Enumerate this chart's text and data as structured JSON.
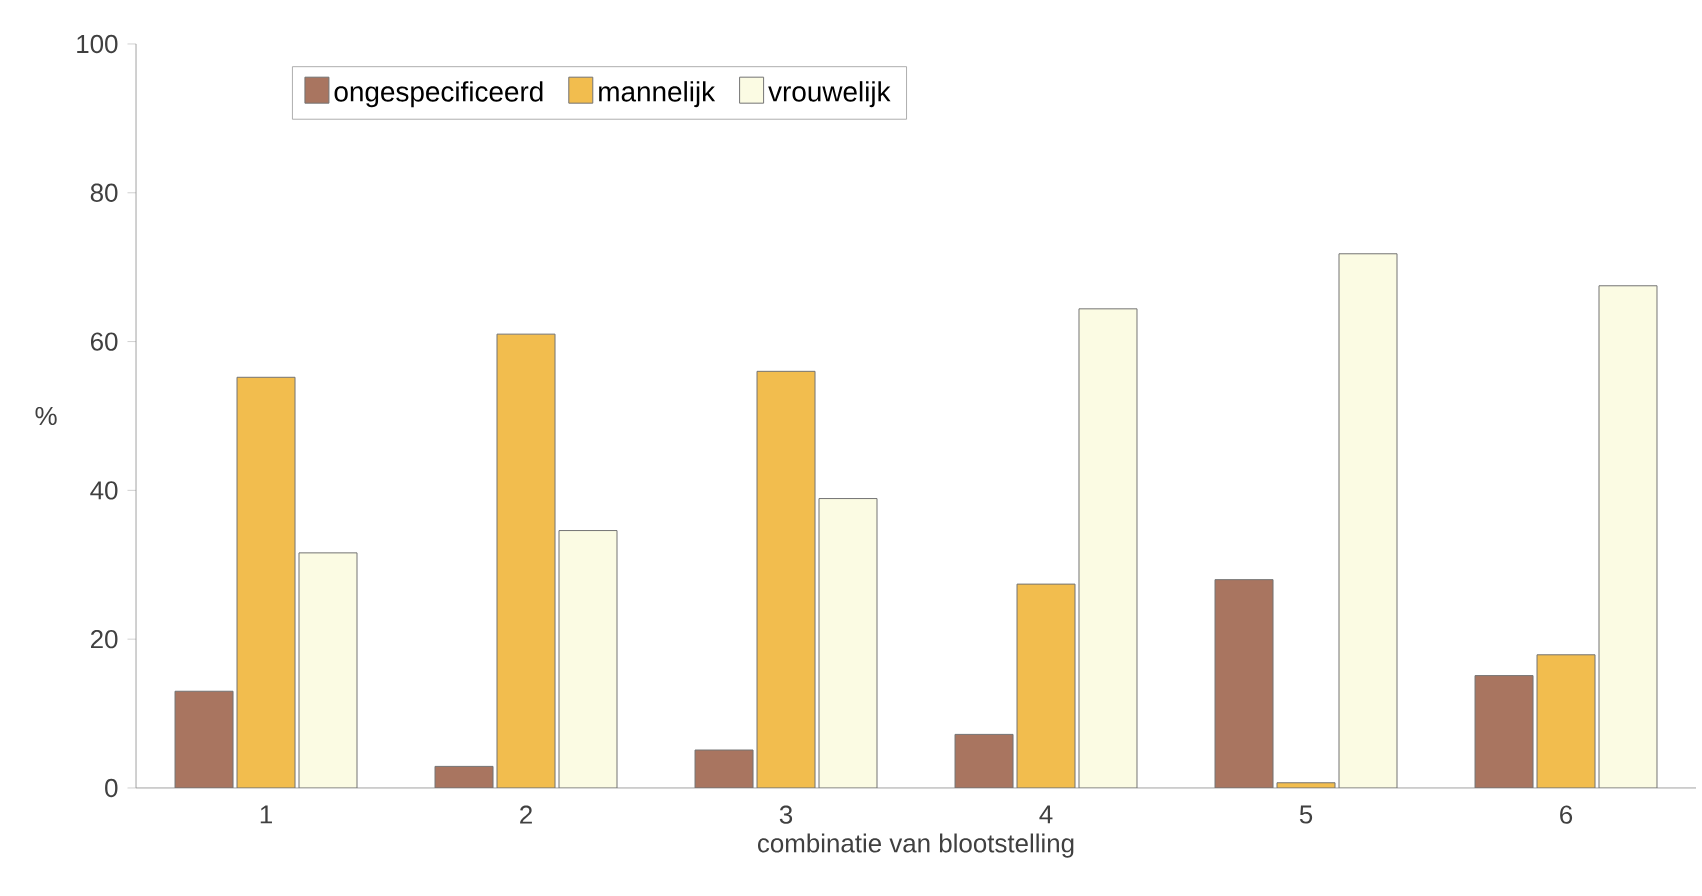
{
  "chart_data": {
    "type": "bar",
    "xlabel": "combinatie van blootstelling",
    "ylabel": "%",
    "categories": [
      "1",
      "2",
      "3",
      "4",
      "5",
      "6"
    ],
    "series": [
      {
        "name": "ongespecificeerd",
        "color": "#a97560",
        "values": [
          13.0,
          2.9,
          5.1,
          7.2,
          28.0,
          15.1
        ]
      },
      {
        "name": "mannelijk",
        "color": "#f2bd4e",
        "values": [
          55.2,
          61.0,
          56.0,
          27.4,
          0.7,
          17.9
        ]
      },
      {
        "name": "vrouwelijk",
        "color": "#fbfbe3",
        "values": [
          31.6,
          34.6,
          38.9,
          64.4,
          71.8,
          67.5
        ]
      }
    ],
    "ylim": [
      0,
      100
    ],
    "yticks": [
      0,
      20,
      40,
      60,
      80,
      100
    ],
    "grid": false,
    "legend": "top left"
  }
}
